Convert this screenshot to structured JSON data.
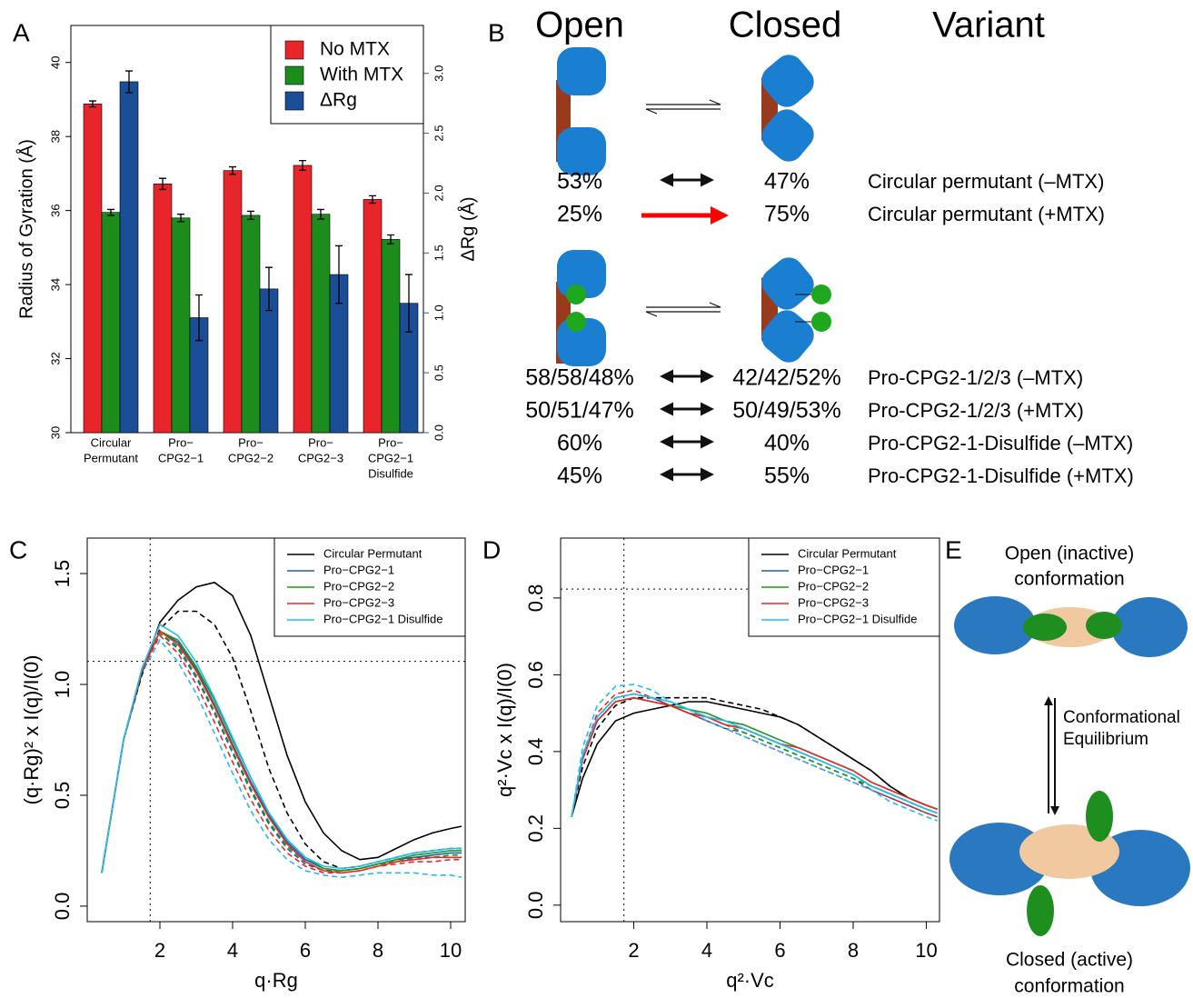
{
  "chart_data": [
    {
      "type": "bar",
      "panel_label": "A",
      "categories": [
        [
          "Circular",
          "Permutant"
        ],
        [
          "Pro−",
          "CPG2−1"
        ],
        [
          "Pro−",
          "CPG2−2"
        ],
        [
          "Pro−",
          "CPG2−3"
        ],
        [
          "Pro−",
          "CPG2−1",
          "Disulfide"
        ]
      ],
      "ylabel": "Radius of Gyration (Å)",
      "y2label": "ΔRg (Å)",
      "ylim": [
        30,
        41
      ],
      "yticks": [
        30,
        32,
        34,
        36,
        38,
        40
      ],
      "y2lim": [
        0,
        3.4
      ],
      "y2ticks": [
        {
          "value": 0,
          "label": "0.0"
        },
        0.5,
        {
          "value": 1,
          "label": "1.0"
        },
        1.5,
        {
          "value": 2,
          "label": "2.0"
        },
        2.5,
        {
          "value": 3,
          "label": "3.0"
        }
      ],
      "y2color": "#1f5fa0",
      "legend": "top-right",
      "series": [
        {
          "name": "No MTX",
          "color": "#e8252b",
          "values": [
            38.88,
            36.72,
            37.08,
            37.22,
            36.3
          ],
          "errors": [
            0.08,
            0.15,
            0.1,
            0.13,
            0.1
          ]
        },
        {
          "name": "With MTX",
          "color": "#1c8c1c",
          "values": [
            35.95,
            35.8,
            35.87,
            35.9,
            35.22
          ],
          "errors": [
            0.08,
            0.1,
            0.11,
            0.13,
            0.12
          ]
        },
        {
          "name": "ΔRg",
          "color": "#1a4e96",
          "axis": "y2",
          "values": [
            2.93,
            0.96,
            1.2,
            1.32,
            1.08
          ],
          "errors": [
            0.09,
            0.19,
            0.18,
            0.24,
            0.24
          ]
        }
      ]
    },
    {
      "type": "line",
      "panel_label": "C",
      "xlabel": "q·Rg",
      "ylabel": "(q·Rg)² x I(q)/I(0)",
      "xlim": [
        0,
        10.4
      ],
      "ylim": [
        -0.07,
        1.66
      ],
      "xticks": [
        2,
        4,
        6,
        8,
        10
      ],
      "yticks": [
        {
          "value": 0,
          "label": "0.0"
        },
        0.5,
        {
          "value": 1,
          "label": "1.0"
        },
        1.5
      ],
      "vlines": [
        1.732
      ],
      "hlines": [
        1.104
      ],
      "legend": "top-right",
      "x": [
        0.4,
        1,
        1.5,
        2,
        2.5,
        3,
        3.5,
        4,
        4.5,
        5,
        5.5,
        6,
        6.5,
        7,
        7.5,
        8,
        8.5,
        9,
        9.5,
        10,
        10.3
      ],
      "series": [
        {
          "name": "Circular Permutant",
          "color": "#000000",
          "values": [
            0.15,
            0.75,
            1.05,
            1.28,
            1.38,
            1.44,
            1.46,
            1.4,
            1.22,
            0.95,
            0.68,
            0.47,
            0.33,
            0.25,
            0.21,
            0.22,
            0.26,
            0.3,
            0.33,
            0.35,
            0.36
          ],
          "dashed_values": [
            0.15,
            0.75,
            1.04,
            1.25,
            1.33,
            1.33,
            1.27,
            1.12,
            0.88,
            0.62,
            0.42,
            0.28,
            0.2,
            0.17,
            0.18,
            0.2,
            0.22,
            0.24,
            0.25,
            0.26,
            0.26
          ]
        },
        {
          "name": "Pro−CPG2−1",
          "color": "#1f5fa8",
          "values": [
            0.15,
            0.75,
            1.06,
            1.24,
            1.19,
            1.07,
            0.91,
            0.73,
            0.56,
            0.41,
            0.29,
            0.21,
            0.17,
            0.16,
            0.17,
            0.19,
            0.21,
            0.22,
            0.23,
            0.24,
            0.24
          ],
          "dashed_values": [
            0.15,
            0.75,
            1.06,
            1.23,
            1.16,
            1.03,
            0.87,
            0.69,
            0.52,
            0.37,
            0.26,
            0.19,
            0.16,
            0.16,
            0.17,
            0.19,
            0.2,
            0.21,
            0.22,
            0.22,
            0.22
          ]
        },
        {
          "name": "Pro−CPG2−2",
          "color": "#1a9a1a",
          "values": [
            0.15,
            0.75,
            1.06,
            1.24,
            1.2,
            1.08,
            0.93,
            0.75,
            0.58,
            0.42,
            0.3,
            0.22,
            0.17,
            0.16,
            0.17,
            0.19,
            0.21,
            0.23,
            0.24,
            0.25,
            0.25
          ],
          "dashed_values": [
            0.15,
            0.75,
            1.06,
            1.23,
            1.17,
            1.04,
            0.88,
            0.7,
            0.53,
            0.38,
            0.27,
            0.2,
            0.16,
            0.16,
            0.17,
            0.19,
            0.2,
            0.22,
            0.22,
            0.23,
            0.23
          ]
        },
        {
          "name": "Pro−CPG2−3",
          "color": "#e8282b",
          "values": [
            0.15,
            0.75,
            1.06,
            1.24,
            1.18,
            1.06,
            0.9,
            0.72,
            0.55,
            0.4,
            0.28,
            0.2,
            0.16,
            0.15,
            0.16,
            0.18,
            0.2,
            0.21,
            0.22,
            0.22,
            0.22
          ],
          "dashed_values": [
            0.15,
            0.75,
            1.06,
            1.22,
            1.14,
            1.0,
            0.83,
            0.65,
            0.48,
            0.34,
            0.24,
            0.18,
            0.15,
            0.15,
            0.16,
            0.18,
            0.19,
            0.2,
            0.2,
            0.21,
            0.21
          ]
        },
        {
          "name": "Pro−CPG2−1 Disulfide",
          "color": "#22bdf0",
          "values": [
            0.15,
            0.75,
            1.07,
            1.27,
            1.22,
            1.1,
            0.94,
            0.76,
            0.58,
            0.42,
            0.3,
            0.22,
            0.18,
            0.17,
            0.18,
            0.2,
            0.22,
            0.24,
            0.25,
            0.26,
            0.26
          ],
          "dashed_values": [
            0.15,
            0.75,
            1.05,
            1.2,
            1.1,
            0.96,
            0.78,
            0.6,
            0.43,
            0.3,
            0.21,
            0.16,
            0.14,
            0.13,
            0.14,
            0.15,
            0.15,
            0.15,
            0.14,
            0.14,
            0.13
          ]
        }
      ]
    },
    {
      "type": "line",
      "panel_label": "D",
      "xlabel": "q²·Vc",
      "ylabel": "q²·Vc x I(q)/I(0)",
      "xlim": [
        0,
        10.36
      ],
      "ylim": [
        -0.043,
        0.956
      ],
      "xticks": [
        2,
        4,
        6,
        8,
        10
      ],
      "yticks": [
        {
          "value": 0,
          "label": "0.0"
        },
        0.2,
        0.4,
        0.6,
        0.8
      ],
      "vlines": [
        1.732
      ],
      "hlines": [
        0.823
      ],
      "legend": "top-right",
      "x": [
        0.3,
        0.6,
        1,
        1.5,
        2,
        2.5,
        3,
        3.5,
        4,
        4.5,
        5,
        5.5,
        6,
        6.5,
        7,
        7.5,
        8,
        8.5,
        9,
        9.5,
        10,
        10.3
      ],
      "series": [
        {
          "name": "Circular Permutant",
          "color": "#000000",
          "values": [
            0.23,
            0.33,
            0.42,
            0.48,
            0.5,
            0.51,
            0.52,
            0.53,
            0.53,
            0.52,
            0.51,
            0.5,
            0.49,
            0.47,
            0.44,
            0.41,
            0.38,
            0.35,
            0.31,
            0.28,
            0.26,
            0.25
          ],
          "dashed_values": [
            0.23,
            0.36,
            0.46,
            0.52,
            0.54,
            0.54,
            0.54,
            0.54,
            0.54,
            0.53,
            0.52,
            0.51,
            0.49,
            0.47,
            0.44,
            0.41,
            0.38,
            0.35,
            0.31,
            0.28,
            0.26,
            0.25
          ]
        },
        {
          "name": "Pro−CPG2−1",
          "color": "#1f5fa8",
          "values": [
            0.23,
            0.38,
            0.48,
            0.53,
            0.54,
            0.53,
            0.52,
            0.5,
            0.49,
            0.47,
            0.46,
            0.44,
            0.42,
            0.4,
            0.38,
            0.36,
            0.34,
            0.31,
            0.29,
            0.27,
            0.25,
            0.24
          ],
          "dashed_values": [
            0.23,
            0.39,
            0.49,
            0.54,
            0.55,
            0.54,
            0.52,
            0.5,
            0.48,
            0.46,
            0.45,
            0.43,
            0.41,
            0.39,
            0.37,
            0.35,
            0.33,
            0.3,
            0.28,
            0.26,
            0.24,
            0.23
          ]
        },
        {
          "name": "Pro−CPG2−2",
          "color": "#1a9a1a",
          "values": [
            0.23,
            0.38,
            0.48,
            0.53,
            0.54,
            0.53,
            0.52,
            0.51,
            0.5,
            0.48,
            0.47,
            0.45,
            0.43,
            0.41,
            0.39,
            0.37,
            0.35,
            0.32,
            0.3,
            0.28,
            0.26,
            0.25
          ],
          "dashed_values": [
            0.23,
            0.39,
            0.49,
            0.54,
            0.55,
            0.54,
            0.53,
            0.51,
            0.49,
            0.47,
            0.45,
            0.43,
            0.41,
            0.39,
            0.37,
            0.35,
            0.33,
            0.31,
            0.29,
            0.27,
            0.25,
            0.24
          ]
        },
        {
          "name": "Pro−CPG2−3",
          "color": "#e8282b",
          "values": [
            0.23,
            0.38,
            0.48,
            0.53,
            0.54,
            0.53,
            0.52,
            0.5,
            0.49,
            0.47,
            0.46,
            0.44,
            0.42,
            0.41,
            0.39,
            0.37,
            0.35,
            0.32,
            0.3,
            0.28,
            0.26,
            0.25
          ],
          "dashed_values": [
            0.23,
            0.39,
            0.5,
            0.55,
            0.56,
            0.54,
            0.52,
            0.5,
            0.48,
            0.46,
            0.44,
            0.42,
            0.4,
            0.38,
            0.36,
            0.34,
            0.32,
            0.3,
            0.28,
            0.26,
            0.24,
            0.23
          ]
        },
        {
          "name": "Pro−CPG2−1 Disulfide",
          "color": "#22bdf0",
          "values": [
            0.23,
            0.39,
            0.49,
            0.54,
            0.55,
            0.54,
            0.53,
            0.51,
            0.49,
            0.48,
            0.46,
            0.44,
            0.42,
            0.4,
            0.38,
            0.36,
            0.34,
            0.31,
            0.29,
            0.27,
            0.25,
            0.24
          ],
          "dashed_values": [
            0.23,
            0.41,
            0.52,
            0.57,
            0.575,
            0.56,
            0.53,
            0.51,
            0.48,
            0.46,
            0.44,
            0.42,
            0.4,
            0.38,
            0.36,
            0.34,
            0.32,
            0.3,
            0.27,
            0.25,
            0.23,
            0.22
          ]
        }
      ]
    }
  ],
  "diagram_b": {
    "panel_label": "B",
    "headers": [
      "Open",
      "Closed",
      "Variant"
    ],
    "rows": [
      {
        "open": "53%",
        "closed": "47%",
        "variant": "Circular permutant (–MTX)"
      },
      {
        "open": "25%",
        "closed": "75%",
        "variant": "Circular permutant (+MTX)",
        "color": "#ff0000"
      },
      {
        "open": "58/58/48%",
        "closed": "42/42/52%",
        "variant": "Pro-CPG2-1/2/3 (–MTX)"
      },
      {
        "open": "50/51/47%",
        "closed": "50/49/53%",
        "variant": "Pro-CPG2-1/2/3 (+MTX)"
      },
      {
        "open": "60%",
        "closed": "40%",
        "variant": "Pro-CPG2-1-Disulfide (–MTX)"
      },
      {
        "open": "45%",
        "closed": "55%",
        "variant": "Pro-CPG2-1-Disulfide (+MTX)"
      }
    ]
  },
  "diagram_e": {
    "panel_label": "E",
    "open_label": [
      "Open (inactive)",
      "conformation"
    ],
    "equilibrium_label": [
      "Conformational",
      "Equilibrium"
    ],
    "closed_label": [
      "Closed (active)",
      "conformation"
    ]
  }
}
